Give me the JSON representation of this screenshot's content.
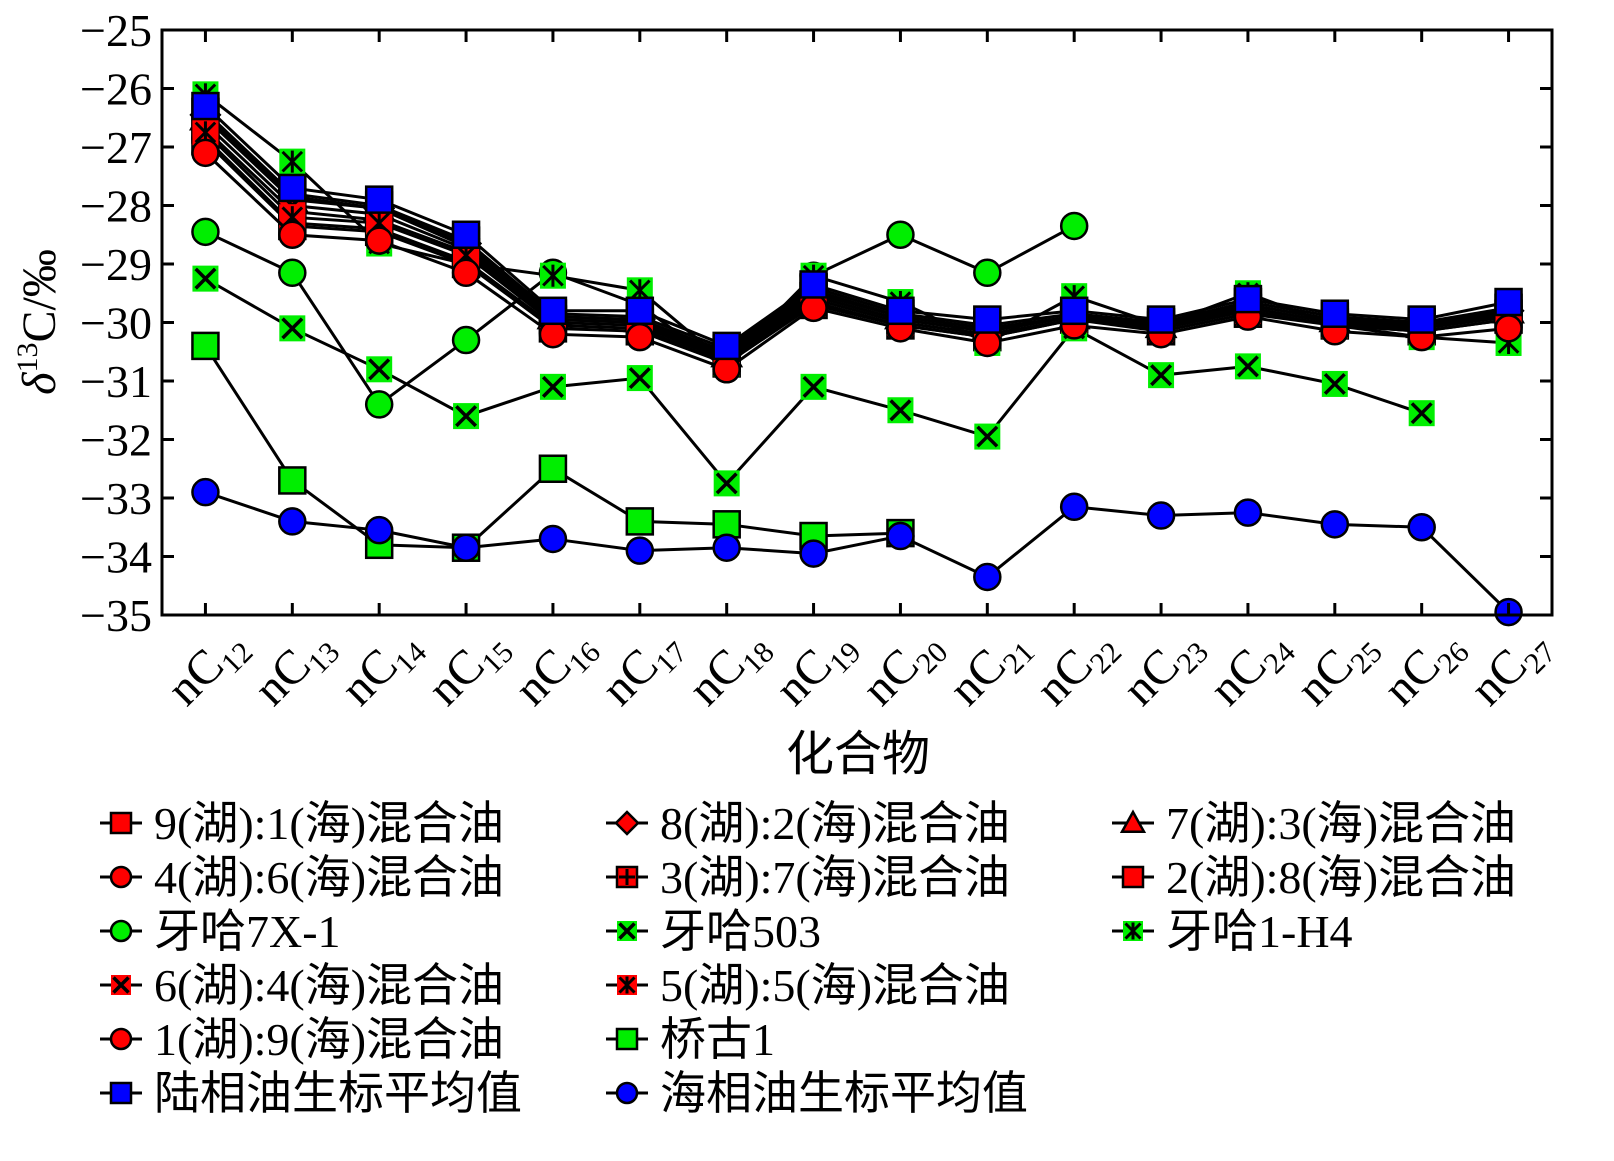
{
  "chart_data": {
    "type": "line",
    "xlabel": "化合物",
    "ylabel": "δ13C/‰",
    "ylim": [
      -35,
      -25
    ],
    "yticks": [
      "−25",
      "−26",
      "−27",
      "−28",
      "−29",
      "−30",
      "−31",
      "−32",
      "−33",
      "−34",
      "−35"
    ],
    "categories": [
      "nC12",
      "nC13",
      "nC14",
      "nC15",
      "nC16",
      "nC17",
      "nC18",
      "nC19",
      "nC20",
      "nC21",
      "nC22",
      "nC23",
      "nC24",
      "nC25",
      "nC26",
      "nC27"
    ],
    "category_labels": [
      {
        "base": "nC",
        "sub": "12"
      },
      {
        "base": "nC",
        "sub": "13"
      },
      {
        "base": "nC",
        "sub": "14"
      },
      {
        "base": "nC",
        "sub": "15"
      },
      {
        "base": "nC",
        "sub": "16"
      },
      {
        "base": "nC",
        "sub": "17"
      },
      {
        "base": "nC",
        "sub": "18"
      },
      {
        "base": "nC",
        "sub": "19"
      },
      {
        "base": "nC",
        "sub": "20"
      },
      {
        "base": "nC",
        "sub": "21"
      },
      {
        "base": "nC",
        "sub": "22"
      },
      {
        "base": "nC",
        "sub": "23"
      },
      {
        "base": "nC",
        "sub": "24"
      },
      {
        "base": "nC",
        "sub": "25"
      },
      {
        "base": "nC",
        "sub": "26"
      },
      {
        "base": "nC",
        "sub": "27"
      }
    ],
    "grid": false,
    "legend_position": "bottom",
    "series": [
      {
        "name": "9(湖):1(海)混合油",
        "marker": "square",
        "color": "#ff0000",
        "values": [
          -26.4,
          -27.8,
          -28.0,
          -28.6,
          -29.85,
          -29.9,
          -30.45,
          -29.4,
          -29.85,
          -30.05,
          -29.85,
          -30.0,
          -29.65,
          -29.9,
          -30.0,
          -29.75
        ]
      },
      {
        "name": "8(湖):2(海)混合油",
        "marker": "diamond",
        "color": "#ff0000",
        "values": [
          -26.45,
          -27.85,
          -28.05,
          -28.65,
          -29.9,
          -29.95,
          -30.5,
          -29.45,
          -29.9,
          -30.1,
          -29.9,
          -30.0,
          -29.7,
          -29.95,
          -30.0,
          -29.8
        ]
      },
      {
        "name": "7(湖):3(海)混合油",
        "marker": "triangle",
        "color": "#ff0000",
        "values": [
          -26.5,
          -27.9,
          -28.05,
          -28.7,
          -29.9,
          -29.95,
          -30.55,
          -29.5,
          -29.9,
          -30.1,
          -29.9,
          -30.05,
          -29.7,
          -29.95,
          -30.05,
          -29.8
        ]
      },
      {
        "name": "4(湖):6(海)混合油",
        "marker": "circle",
        "color": "#ff0000",
        "values": [
          -26.85,
          -28.3,
          -28.4,
          -28.95,
          -30.05,
          -30.1,
          -30.7,
          -29.65,
          -30.05,
          -30.25,
          -29.95,
          -30.1,
          -29.8,
          -30.05,
          -30.15,
          -29.95
        ]
      },
      {
        "name": "3(湖):7(海)混合油",
        "marker": "plus",
        "color": "#ff0000",
        "values": [
          -26.9,
          -28.35,
          -28.45,
          -29.0,
          -30.1,
          -30.15,
          -30.7,
          -29.7,
          -30.05,
          -30.25,
          -29.95,
          -30.15,
          -29.85,
          -30.05,
          -30.15,
          -29.95
        ]
      },
      {
        "name": "2(湖):8(海)混合油",
        "marker": "square",
        "color": "#ff0000",
        "values": [
          -26.7,
          -28.1,
          -28.25,
          -28.8,
          -29.95,
          -30.0,
          -30.6,
          -29.55,
          -29.95,
          -30.15,
          -29.9,
          -30.05,
          -29.75,
          -30.0,
          -30.1,
          -29.85
        ]
      },
      {
        "name": "牙哈7X-1",
        "marker": "circle",
        "color": "#00ee00",
        "values": [
          -28.45,
          -29.15,
          -31.4,
          -30.3,
          -29.15,
          -29.7,
          -30.8,
          -29.2,
          -28.5,
          -29.15,
          -28.35,
          null,
          null,
          null,
          null,
          null
        ]
      },
      {
        "name": "牙哈503",
        "marker": "x",
        "color": "#00ee00",
        "values": [
          -29.25,
          -30.1,
          -30.8,
          -31.6,
          -31.1,
          -30.95,
          -32.75,
          -31.1,
          -31.5,
          -31.95,
          -30.1,
          -30.9,
          -30.75,
          -31.05,
          -31.55,
          null
        ]
      },
      {
        "name": "牙哈1-H4",
        "marker": "asterisk",
        "color": "#00ee00",
        "values": [
          -26.1,
          -27.25,
          -28.65,
          -29.0,
          -29.2,
          -29.45,
          -30.7,
          -29.2,
          -29.65,
          -30.35,
          -29.55,
          -30.05,
          -29.5,
          -30.05,
          -30.25,
          -30.35
        ]
      },
      {
        "name": "6(湖):4(海)混合油",
        "marker": "x",
        "color": "#ff0000",
        "values": [
          -26.6,
          -28.0,
          -28.15,
          -28.75,
          -29.95,
          -30.0,
          -30.6,
          -29.55,
          -29.95,
          -30.15,
          -29.9,
          -30.05,
          -29.75,
          -30.0,
          -30.05,
          -29.85
        ]
      },
      {
        "name": "5(湖):5(海)混合油",
        "marker": "asterisk",
        "color": "#ff0000",
        "values": [
          -26.75,
          -28.2,
          -28.3,
          -28.85,
          -30.0,
          -30.05,
          -30.65,
          -29.6,
          -30.0,
          -30.2,
          -29.95,
          -30.1,
          -29.8,
          -30.05,
          -30.1,
          -29.9
        ]
      },
      {
        "name": "1(湖):9(海)混合油",
        "marker": "circle",
        "color": "#ff0000",
        "values": [
          -27.1,
          -28.5,
          -28.6,
          -29.15,
          -30.2,
          -30.25,
          -30.8,
          -29.75,
          -30.1,
          -30.35,
          -30.05,
          -30.2,
          -29.9,
          -30.15,
          -30.25,
          -30.1
        ]
      },
      {
        "name": "桥古1",
        "marker": "square",
        "color": "#00ee00",
        "values": [
          -30.4,
          -32.7,
          -33.8,
          -33.85,
          -32.5,
          -33.4,
          -33.45,
          -33.65,
          -33.6,
          null,
          null,
          null,
          null,
          null,
          null,
          null
        ]
      },
      {
        "name": "陆相油生标平均值",
        "marker": "square",
        "color": "#0000ff",
        "values": [
          -26.3,
          -27.7,
          -27.9,
          -28.5,
          -29.8,
          -29.8,
          -30.4,
          -29.35,
          -29.8,
          -29.95,
          -29.8,
          -29.95,
          -29.6,
          -29.85,
          -29.95,
          -29.65
        ]
      },
      {
        "name": "海相油生标平均值",
        "marker": "circle",
        "color": "#0000ff",
        "values": [
          -32.9,
          -33.4,
          -33.55,
          -33.85,
          -33.7,
          -33.9,
          -33.85,
          -33.95,
          -33.65,
          -34.35,
          -33.15,
          -33.3,
          -33.25,
          -33.45,
          -33.5,
          -34.95
        ]
      }
    ]
  }
}
